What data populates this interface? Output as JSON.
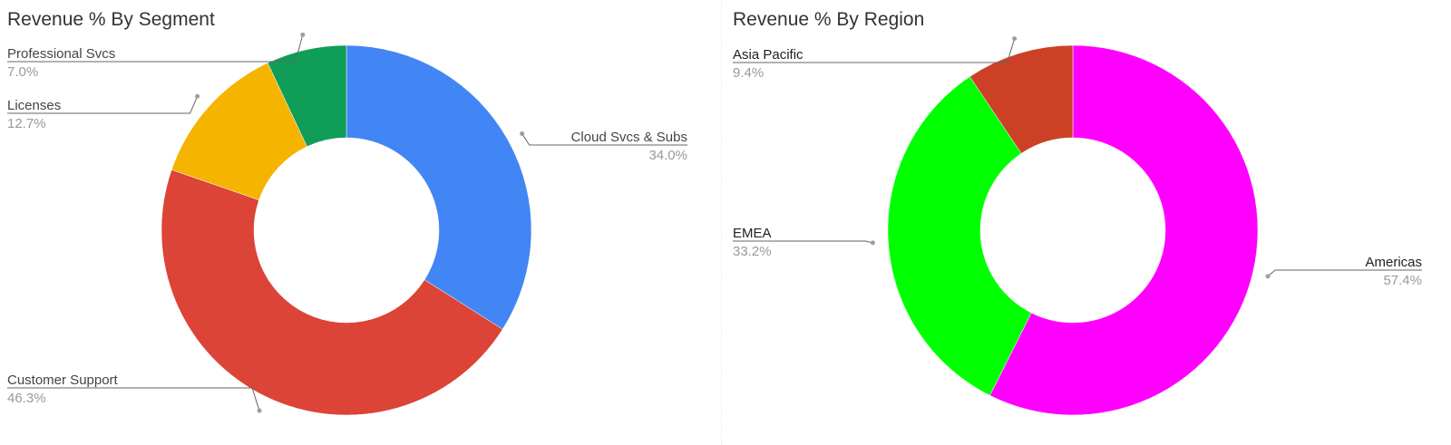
{
  "charts": [
    {
      "chart_data": {
        "type": "pie",
        "donut": true,
        "title": "Revenue % By Segment",
        "slices": [
          {
            "label": "Cloud Svcs & Subs",
            "value": 34.0,
            "value_label": "34.0%",
            "color": "#4285F4"
          },
          {
            "label": "Customer Support",
            "value": 46.3,
            "value_label": "46.3%",
            "color": "#DB4437"
          },
          {
            "label": "Licenses",
            "value": 12.7,
            "value_label": "12.7%",
            "color": "#F4B400"
          },
          {
            "label": "Professional Svcs",
            "value": 7.0,
            "value_label": "7.0%",
            "color": "#0F9D58"
          }
        ],
        "legend": "labeled"
      }
    },
    {
      "chart_data": {
        "type": "pie",
        "donut": true,
        "title": "Revenue % By Region",
        "slices": [
          {
            "label": "Americas",
            "value": 57.4,
            "value_label": "57.4%",
            "color": "#FF00FF"
          },
          {
            "label": "EMEA",
            "value": 33.2,
            "value_label": "33.2%",
            "color": "#00FF00"
          },
          {
            "label": "Asia Pacific",
            "value": 9.4,
            "value_label": "9.4%",
            "color": "#CC4125"
          }
        ],
        "legend": "labeled"
      }
    }
  ]
}
